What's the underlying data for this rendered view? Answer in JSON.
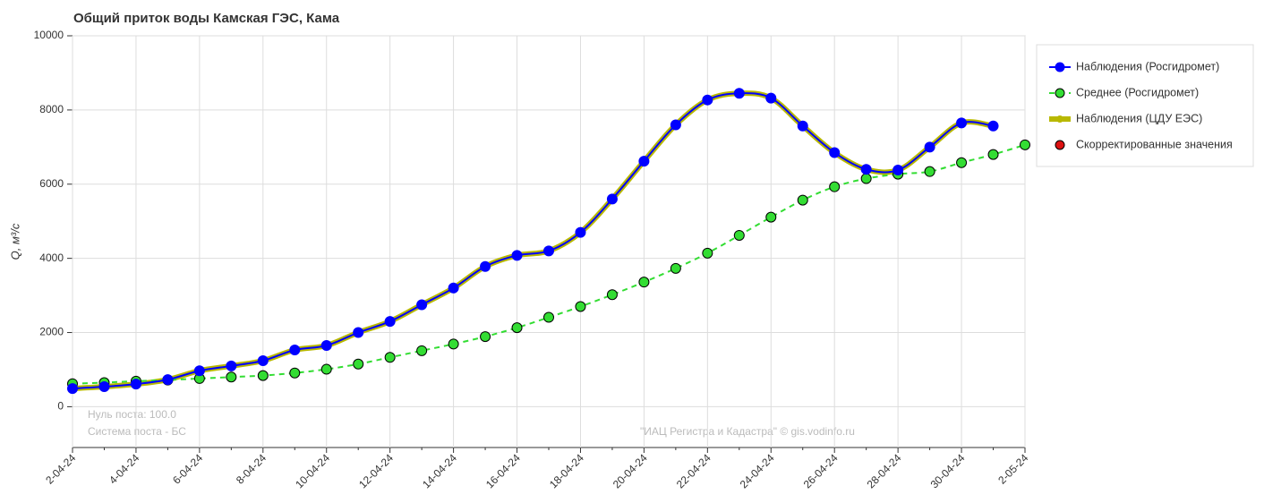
{
  "chart_data": {
    "type": "line",
    "title": "Общий приток воды Камская ГЭС,  Кама",
    "y_label": "Q, м³/с",
    "annotations": [
      "Нуль поста: 100.0",
      "Система поста - БС",
      "\"ИАЦ Регистра и Кадастра\" © gis.vodinfo.ru"
    ],
    "categories": [
      "2-04-24",
      null,
      "4-04-24",
      null,
      "6-04-24",
      null,
      "8-04-24",
      null,
      "10-04-24",
      null,
      "12-04-24",
      null,
      "14-04-24",
      null,
      "16-04-24",
      null,
      "18-04-24",
      null,
      "20-04-24",
      null,
      "22-04-24",
      null,
      "24-04-24",
      null,
      "26-04-24",
      null,
      "28-04-24",
      null,
      "30-04-24",
      null,
      "2-05-24"
    ],
    "ylim": [
      -1100,
      10000
    ],
    "yticks": [
      0,
      2000,
      4000,
      6000,
      8000,
      10000
    ],
    "grid": true,
    "series": [
      {
        "name": "Наблюдения (ЦДУ ЕЭС)",
        "color": "#b8b800",
        "values": [
          490,
          540,
          610,
          730,
          970,
          1100,
          1240,
          1530,
          1650,
          2000,
          2300,
          2750,
          3200,
          3780,
          4080,
          4200,
          4700,
          5600,
          6620,
          7600,
          8270,
          8450,
          8320,
          7570,
          6850,
          6400,
          6380,
          7000,
          7650,
          7570,
          null
        ]
      },
      {
        "name": "Среднее (Росгидромет)",
        "color": "#33dd33",
        "values": [
          620,
          650,
          690,
          720,
          760,
          800,
          840,
          910,
          1010,
          1150,
          1330,
          1510,
          1690,
          1890,
          2130,
          2410,
          2700,
          3020,
          3360,
          3730,
          4140,
          4620,
          5110,
          5570,
          5930,
          6150,
          6270,
          6340,
          6580,
          6800,
          7060
        ]
      },
      {
        "name": "Наблюдения (Росгидромет)",
        "color": "#0000ff",
        "values": [
          490,
          540,
          610,
          730,
          970,
          1100,
          1240,
          1530,
          1650,
          2000,
          2300,
          2750,
          3200,
          3780,
          4080,
          4200,
          4700,
          5600,
          6620,
          7600,
          8270,
          8450,
          8320,
          7570,
          6850,
          6400,
          6380,
          7000,
          7650,
          7570,
          null
        ]
      },
      {
        "name": "Скорректированные значения",
        "color": "#dd1111",
        "values": [
          null,
          null,
          null,
          null,
          null,
          null,
          null,
          null,
          null,
          null,
          null,
          null,
          null,
          null,
          null,
          null,
          null,
          null,
          null,
          null,
          null,
          null,
          null,
          null,
          null,
          null,
          null,
          null,
          null,
          null,
          null
        ]
      }
    ]
  }
}
